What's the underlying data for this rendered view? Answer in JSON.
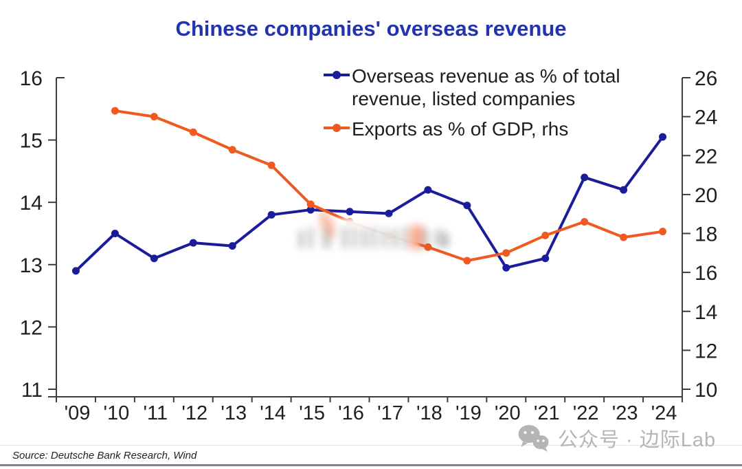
{
  "title": "Chinese companies' overseas revenue",
  "legend": {
    "items": [
      {
        "label": "Overseas revenue as % of total revenue, listed companies"
      },
      {
        "label": "Exports as % of GDP, rhs"
      }
    ]
  },
  "chart_data": {
    "type": "line",
    "title": "Chinese companies' overseas revenue",
    "x_labels": [
      "'09",
      "'10",
      "'11",
      "'12",
      "'13",
      "'14",
      "'15",
      "'16",
      "'17",
      "'18",
      "'19",
      "'20",
      "'21",
      "'22",
      "'23",
      "'24"
    ],
    "series": [
      {
        "name": "Overseas revenue as % of total revenue, listed companies",
        "axis": "left",
        "color": "#1b1c99",
        "marker": "circle",
        "values": [
          12.9,
          13.5,
          13.1,
          13.35,
          13.3,
          13.8,
          13.88,
          13.85,
          13.82,
          14.2,
          13.95,
          12.95,
          13.1,
          14.4,
          14.2,
          15.05
        ]
      },
      {
        "name": "Exports as % of GDP, rhs",
        "axis": "right",
        "color": "#f05a21",
        "marker": "circle",
        "values": [
          null,
          24.3,
          24.0,
          23.2,
          22.3,
          21.5,
          19.5,
          18.6,
          17.9,
          17.3,
          16.6,
          17.0,
          17.9,
          18.6,
          17.8,
          18.1
        ]
      }
    ],
    "left_axis": {
      "min": 11,
      "max": 16,
      "ticks": [
        16,
        15,
        14,
        13,
        12,
        11
      ]
    },
    "right_axis": {
      "min": 10,
      "max": 26,
      "ticks": [
        26,
        24,
        22,
        20,
        18,
        16,
        14,
        12,
        10
      ]
    },
    "grid": false,
    "legend_position": "inside-top-right"
  },
  "source": "Source: Deutsche Bank Research, Wind",
  "watermark": {
    "icon": "wechat-icon",
    "text": "公众号 · 边际Lab"
  },
  "colors": {
    "title": "#2233ad",
    "axis": "#3c3c3c",
    "tick_label": "#1f1f1f",
    "series_blue": "#1b1c99",
    "series_orange": "#f05a21",
    "watermark_gray": "#b5b5b5",
    "bottom_rule": "#76879c"
  }
}
